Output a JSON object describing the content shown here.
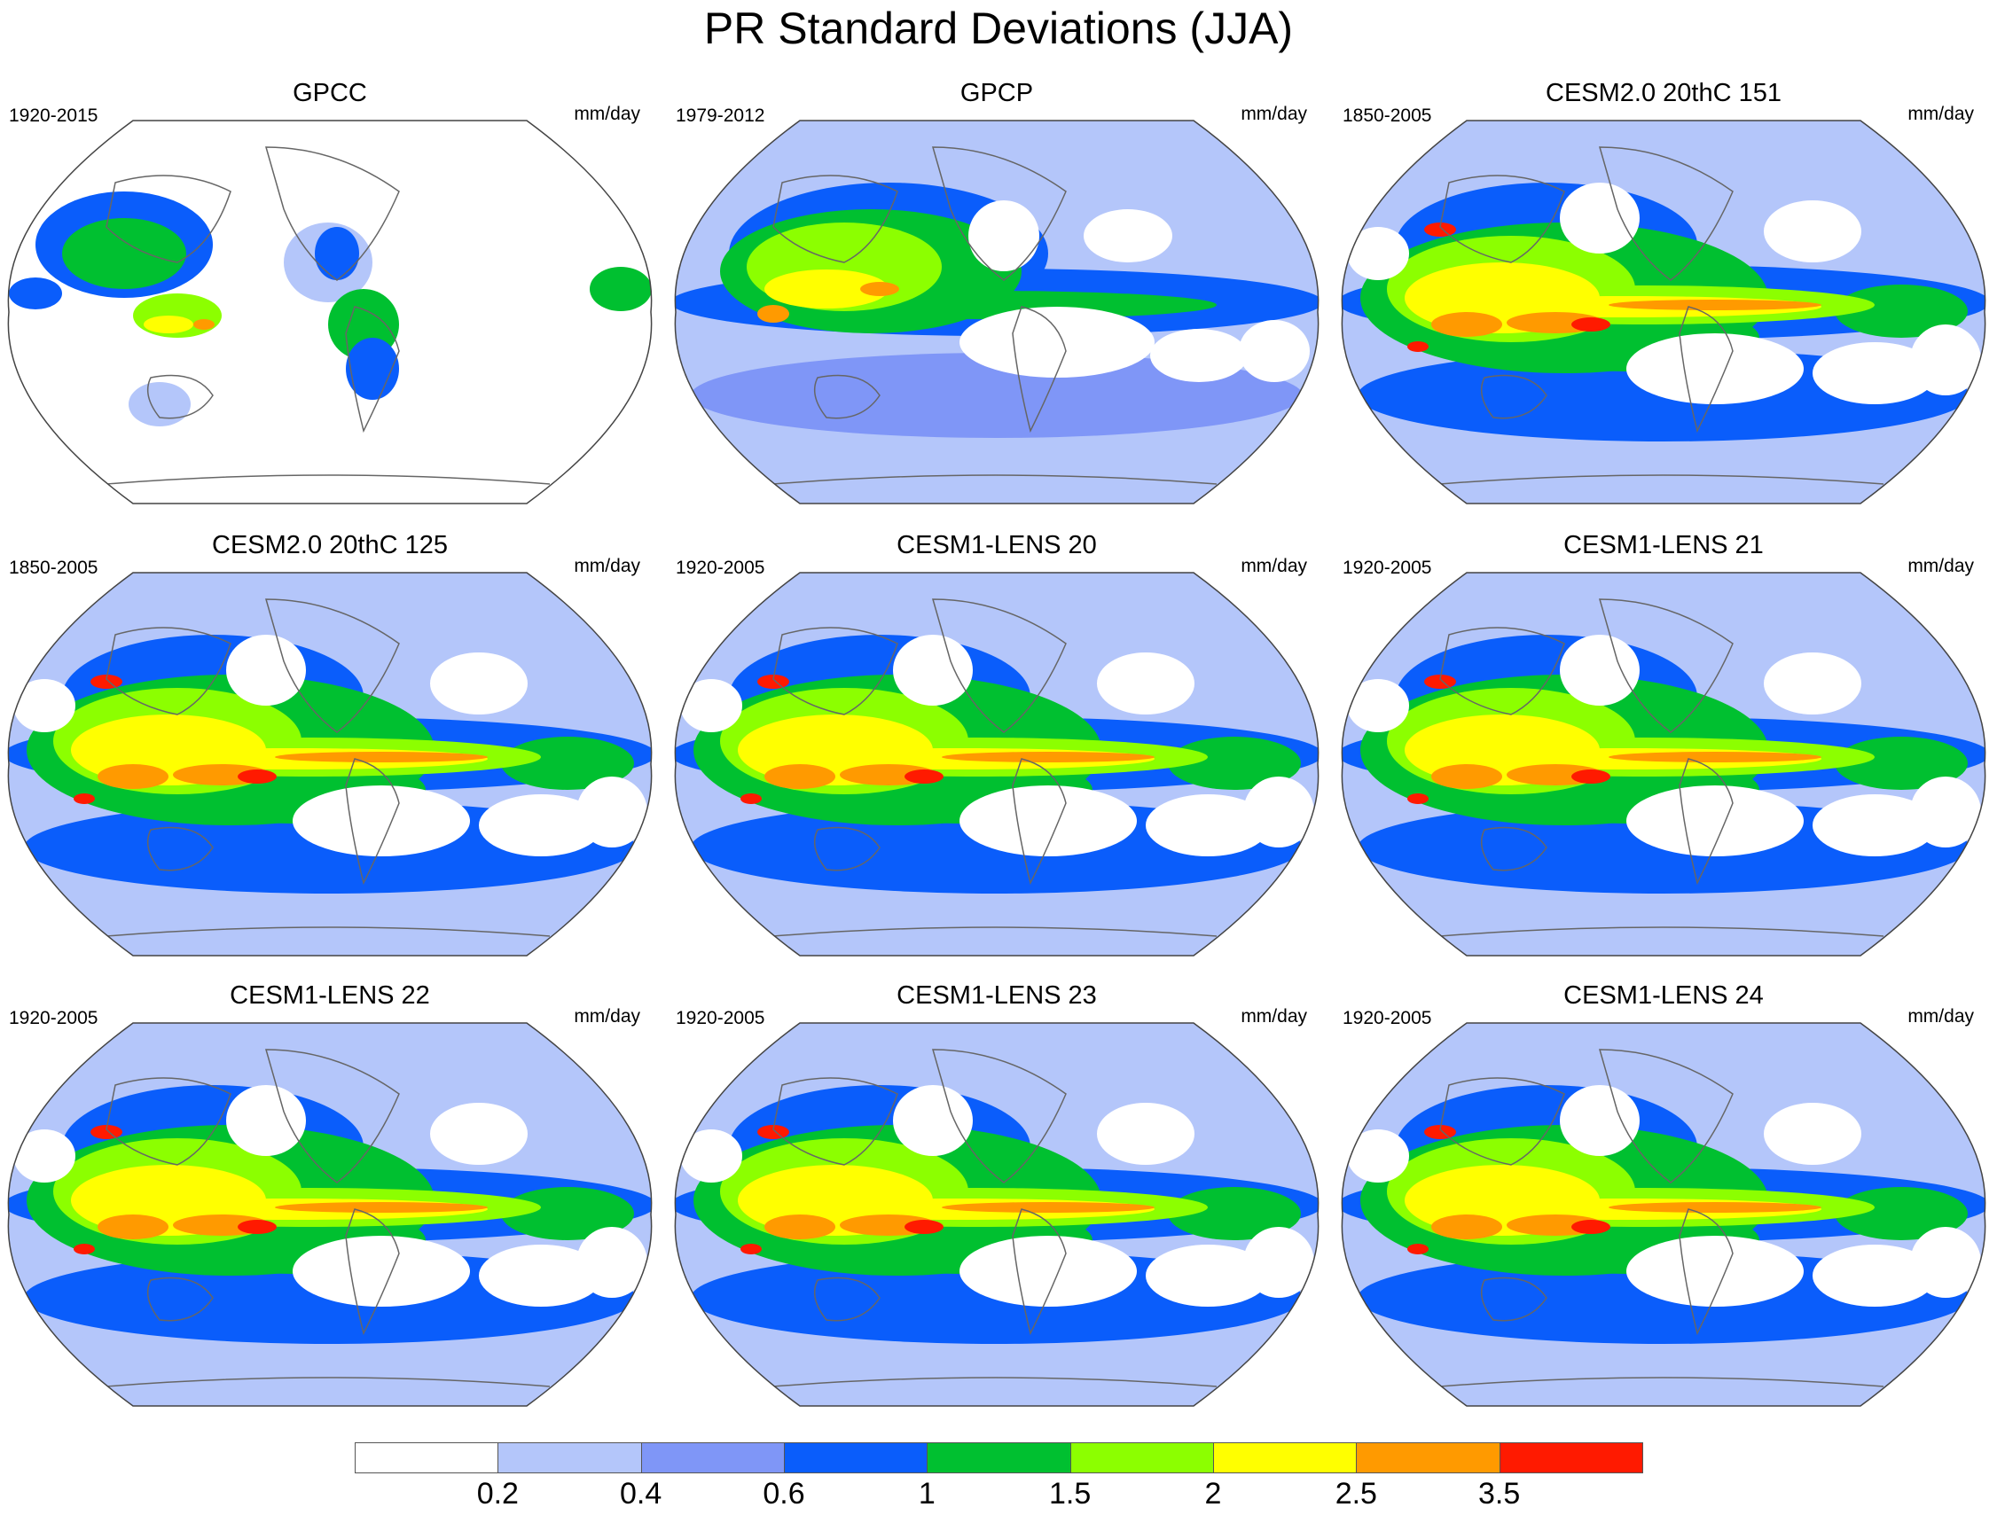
{
  "title": "PR Standard Deviations (JJA)",
  "panels": [
    {
      "title": "GPCC",
      "period": "1920-2015",
      "units": "mm/day",
      "kind": "obs-land"
    },
    {
      "title": "GPCP",
      "period": "1979-2012",
      "units": "mm/day",
      "kind": "obs-global"
    },
    {
      "title": "CESM2.0 20thC 151",
      "period": "1850-2005",
      "units": "mm/day",
      "kind": "model"
    },
    {
      "title": "CESM2.0 20thC 125",
      "period": "1850-2005",
      "units": "mm/day",
      "kind": "model"
    },
    {
      "title": "CESM1-LENS 20",
      "period": "1920-2005",
      "units": "mm/day",
      "kind": "model"
    },
    {
      "title": "CESM1-LENS 21",
      "period": "1920-2005",
      "units": "mm/day",
      "kind": "model"
    },
    {
      "title": "CESM1-LENS 22",
      "period": "1920-2005",
      "units": "mm/day",
      "kind": "model"
    },
    {
      "title": "CESM1-LENS 23",
      "period": "1920-2005",
      "units": "mm/day",
      "kind": "model"
    },
    {
      "title": "CESM1-LENS 24",
      "period": "1920-2005",
      "units": "mm/day",
      "kind": "model"
    }
  ],
  "colorbar": {
    "labels": [
      "0.2",
      "0.4",
      "0.6",
      "1",
      "1.5",
      "2",
      "2.5",
      "3.5"
    ],
    "colors": [
      "#ffffff",
      "#b4c6fa",
      "#7f96f7",
      "#0a5dfb",
      "#00c030",
      "#8cff00",
      "#ffff00",
      "#ff9a00",
      "#ff1a00"
    ]
  }
}
